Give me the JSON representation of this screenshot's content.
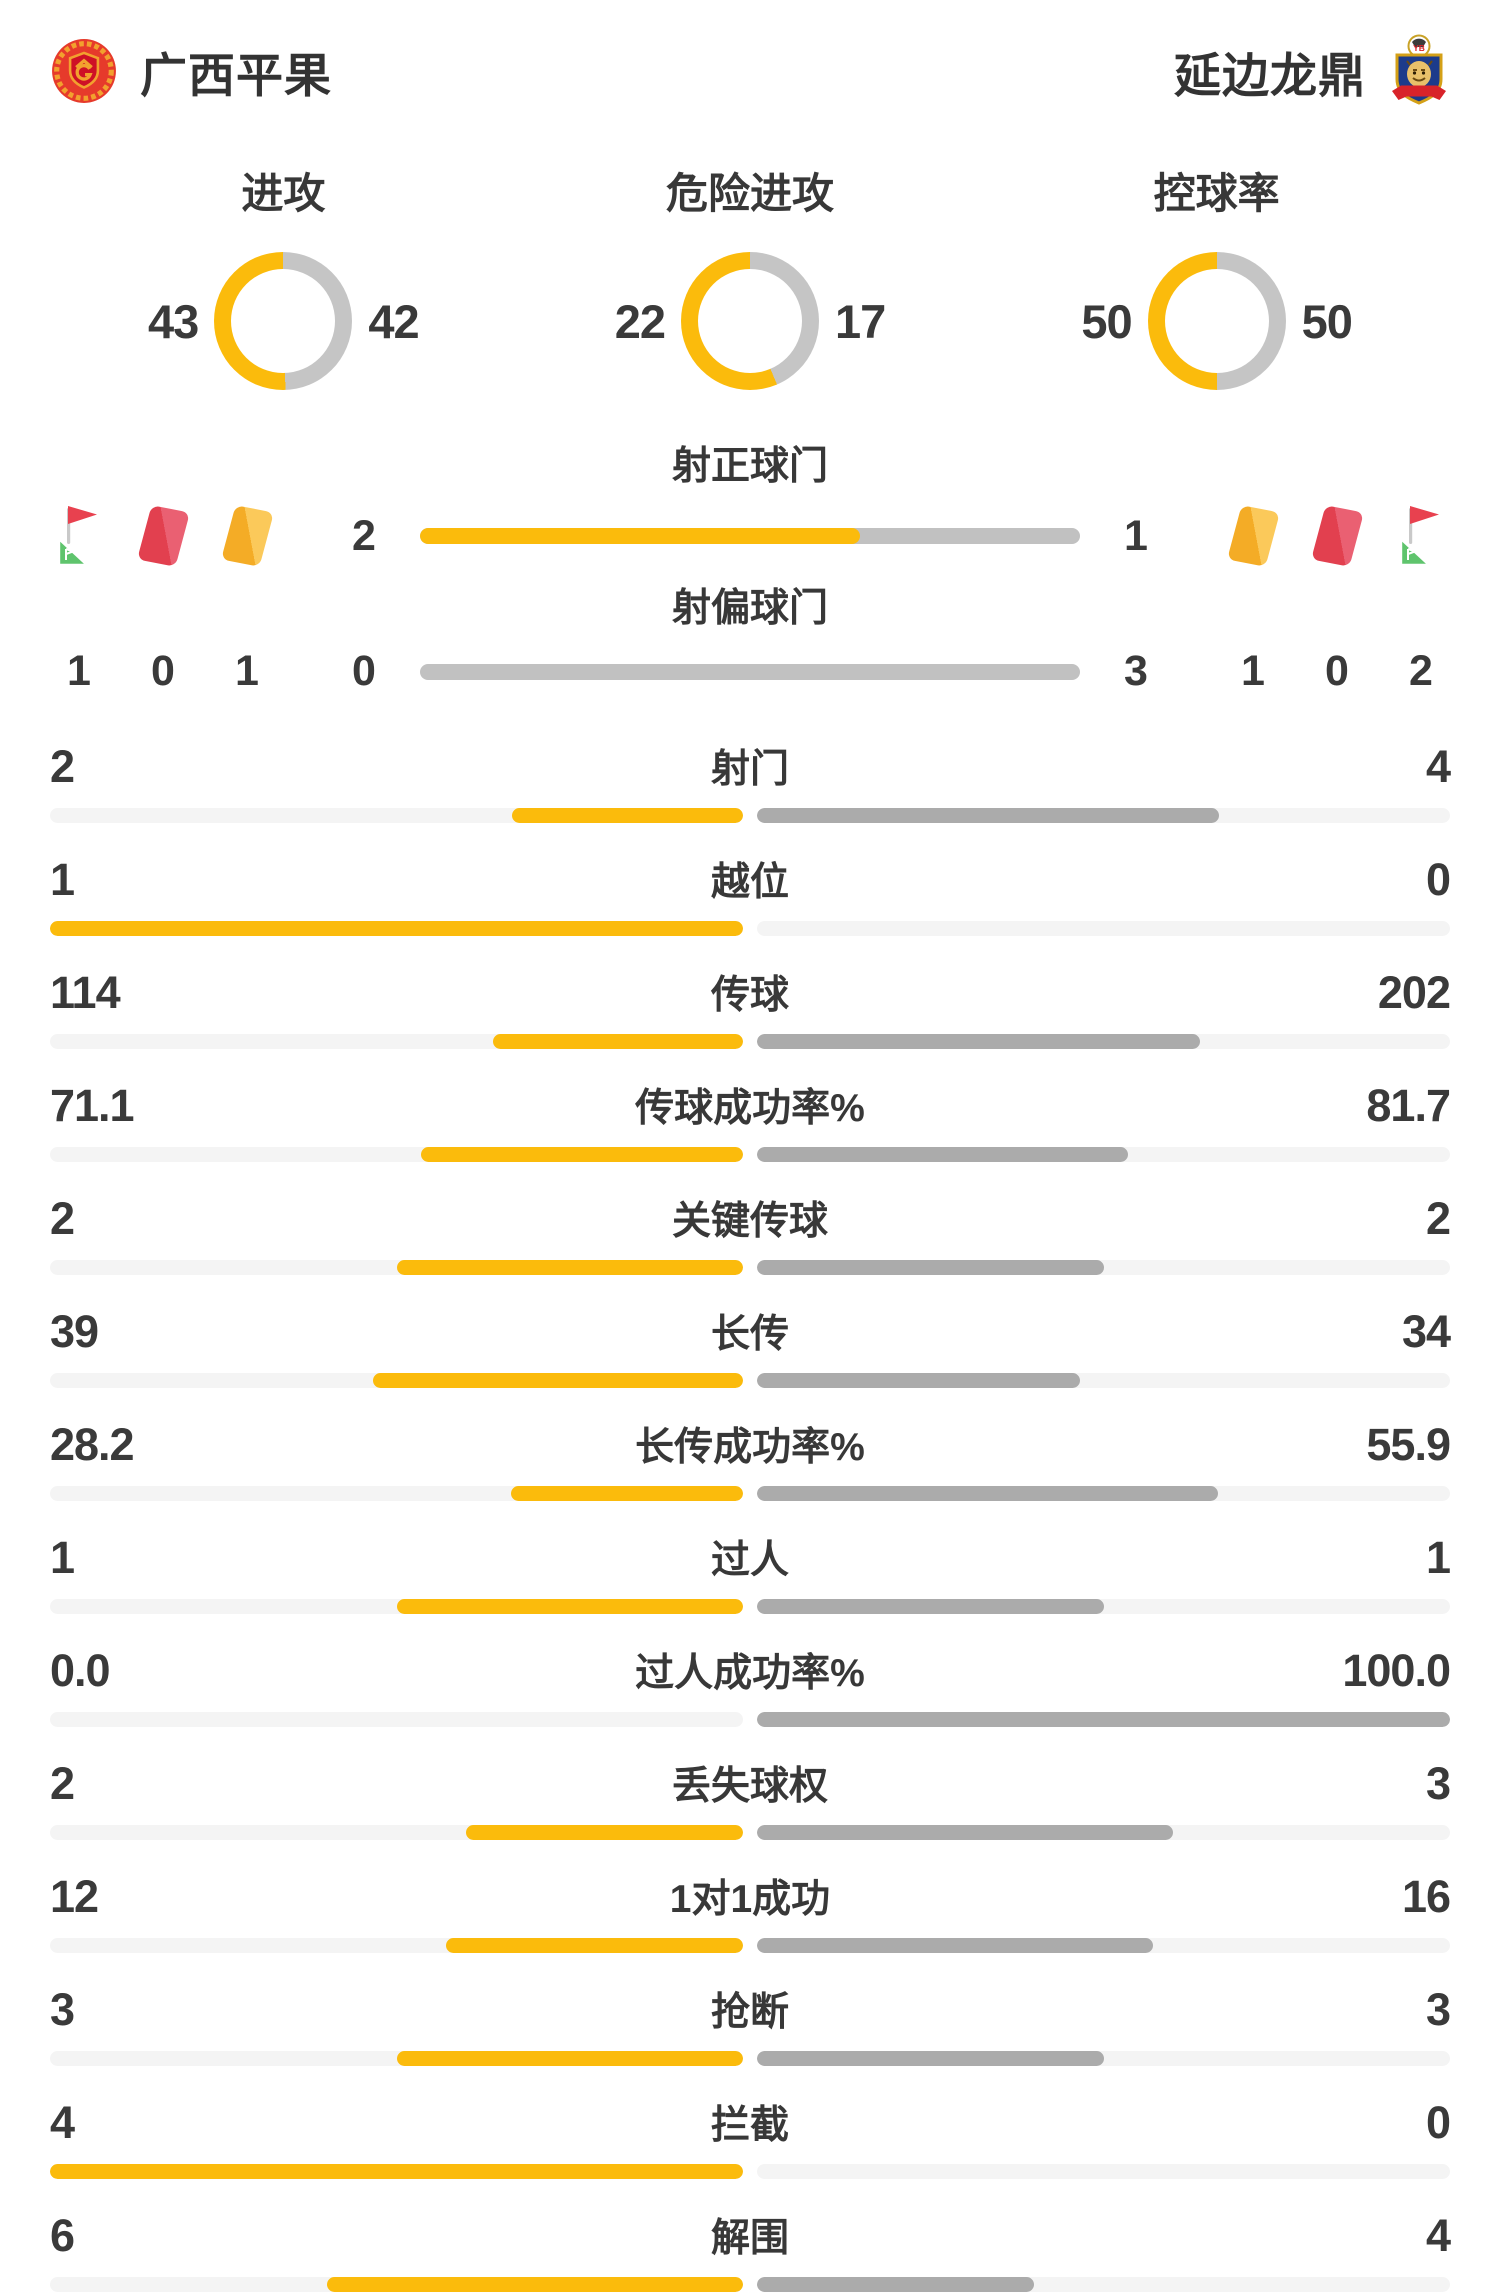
{
  "teams": {
    "home": {
      "name": "广西平果"
    },
    "away": {
      "name": "延边龙鼎"
    }
  },
  "colors": {
    "yellow": "#FBBB0C",
    "donut_gray": "#C5C5C5",
    "bar_fill_gray": "#ABABAB",
    "bar_track_gray": "#F4F4F4",
    "shots_bar_gray": "#C1C1C1",
    "text_dark": "#333333",
    "red_card": "#E2404F",
    "yellow_card": "#F4AC26",
    "flag_red": "#E8414F",
    "flag_green": "#5FC46D"
  },
  "donuts": [
    {
      "label": "进攻",
      "home": "43",
      "away": "42"
    },
    {
      "label": "危险进攻",
      "home": "22",
      "away": "17"
    },
    {
      "label": "控球率",
      "home": "50",
      "away": "50"
    }
  ],
  "shots": [
    {
      "label": "射正球门",
      "home": "2",
      "away": "1"
    },
    {
      "label": "射偏球门",
      "home": "0",
      "away": "3"
    }
  ],
  "discipline": {
    "home": {
      "corner_kicks": "1",
      "red_cards": "0",
      "yellow_cards": "1"
    },
    "away": {
      "yellow_cards": "1",
      "red_cards": "0",
      "corner_kicks": "2"
    }
  },
  "stats": [
    {
      "label": "射门",
      "home": "2",
      "away": "4"
    },
    {
      "label": "越位",
      "home": "1",
      "away": "0"
    },
    {
      "label": "传球",
      "home": "114",
      "away": "202"
    },
    {
      "label": "传球成功率%",
      "home": "71.1",
      "away": "81.7"
    },
    {
      "label": "关键传球",
      "home": "2",
      "away": "2"
    },
    {
      "label": "长传",
      "home": "39",
      "away": "34"
    },
    {
      "label": "长传成功率%",
      "home": "28.2",
      "away": "55.9"
    },
    {
      "label": "过人",
      "home": "1",
      "away": "1"
    },
    {
      "label": "过人成功率%",
      "home": "0.0",
      "away": "100.0"
    },
    {
      "label": "丢失球权",
      "home": "2",
      "away": "3"
    },
    {
      "label": "1对1成功",
      "home": "12",
      "away": "16"
    },
    {
      "label": "抢断",
      "home": "3",
      "away": "3"
    },
    {
      "label": "拦截",
      "home": "4",
      "away": "0"
    },
    {
      "label": "解围",
      "home": "6",
      "away": "4"
    }
  ],
  "chart_data": [
    {
      "type": "pie",
      "title": "进攻",
      "series": [
        {
          "name": "广西平果",
          "values": [
            43
          ]
        },
        {
          "name": "延边龙鼎",
          "values": [
            42
          ]
        }
      ]
    },
    {
      "type": "pie",
      "title": "危险进攻",
      "series": [
        {
          "name": "广西平果",
          "values": [
            22
          ]
        },
        {
          "name": "延边龙鼎",
          "values": [
            17
          ]
        }
      ]
    },
    {
      "type": "pie",
      "title": "控球率",
      "series": [
        {
          "name": "广西平果",
          "values": [
            50
          ]
        },
        {
          "name": "延边龙鼎",
          "values": [
            50
          ]
        }
      ]
    },
    {
      "type": "bar",
      "categories": [
        "射正球门",
        "射偏球门",
        "射门",
        "越位",
        "传球",
        "传球成功率%",
        "关键传球",
        "长传",
        "长传成功率%",
        "过人",
        "过人成功率%",
        "丢失球权",
        "1对1成功",
        "抢断",
        "拦截",
        "解围"
      ],
      "series": [
        {
          "name": "广西平果",
          "values": [
            2,
            0,
            2,
            1,
            114,
            71.1,
            2,
            39,
            28.2,
            1,
            0.0,
            2,
            12,
            3,
            4,
            6
          ]
        },
        {
          "name": "延边龙鼎",
          "values": [
            1,
            3,
            4,
            0,
            202,
            81.7,
            2,
            34,
            55.9,
            1,
            100.0,
            3,
            16,
            3,
            0,
            4
          ]
        }
      ]
    }
  ]
}
